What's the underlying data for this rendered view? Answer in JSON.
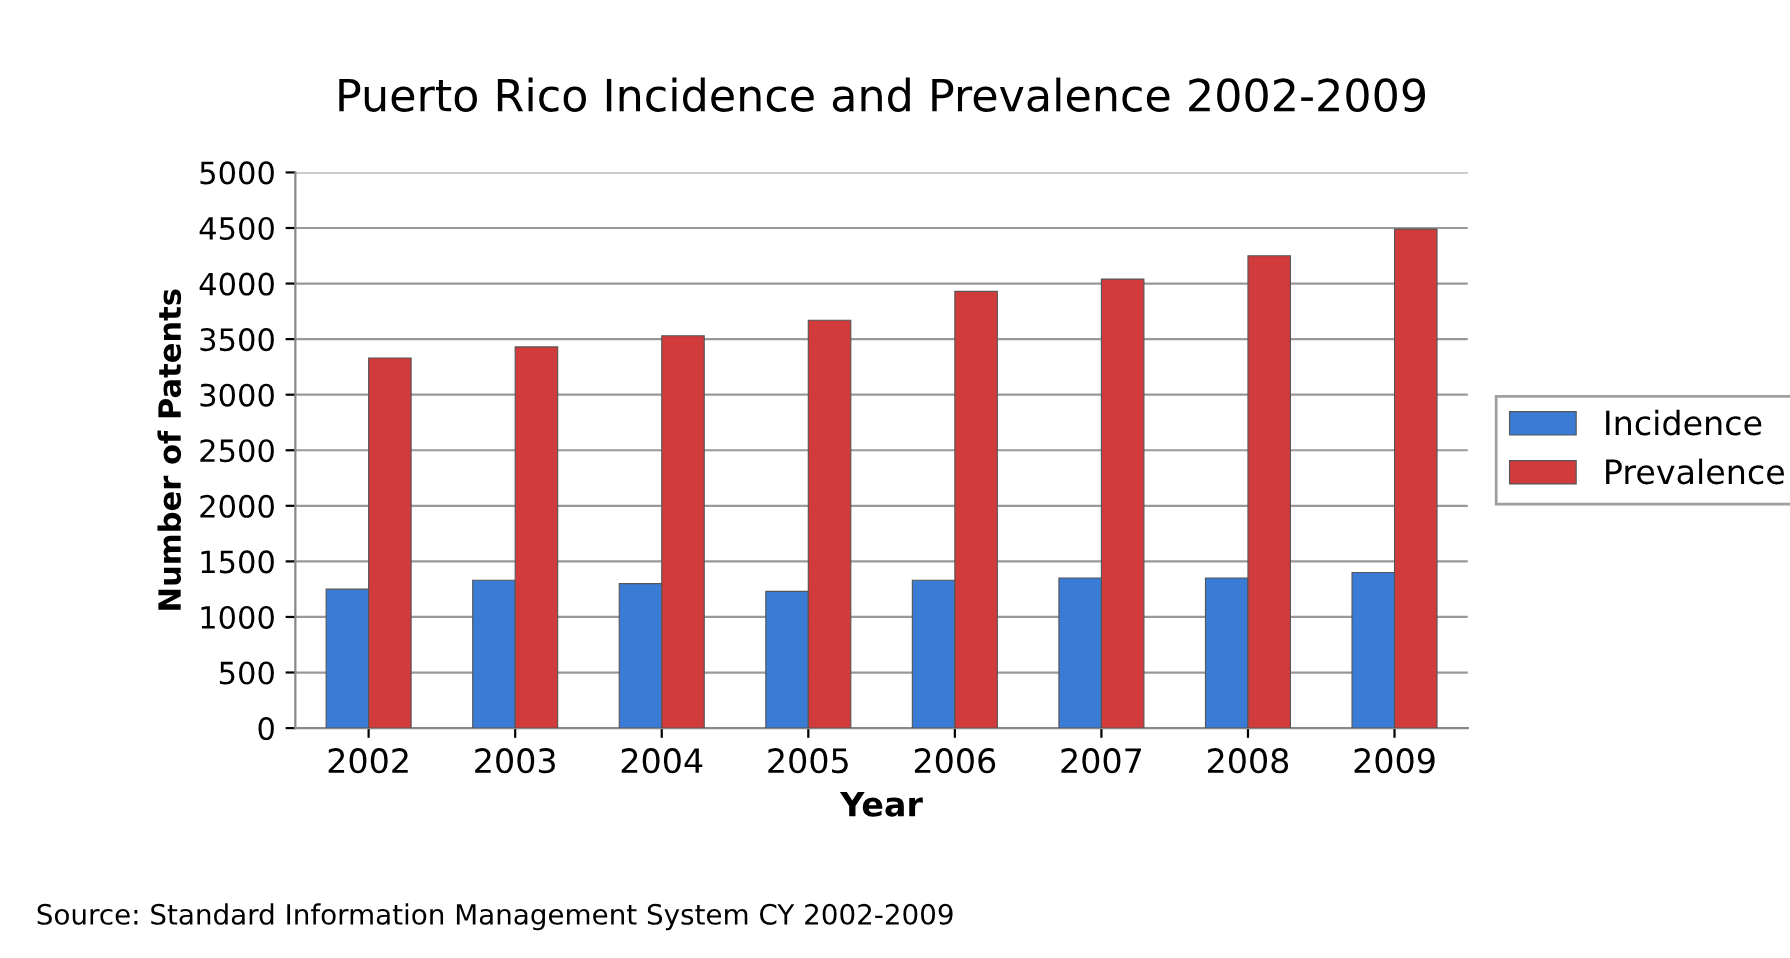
{
  "chart_data": {
    "type": "bar",
    "title": "Puerto Rico Incidence and Prevalence 2002-2009",
    "xlabel": "Year",
    "ylabel": "Number of Patents",
    "categories": [
      "2002",
      "2003",
      "2004",
      "2005",
      "2006",
      "2007",
      "2008",
      "2009"
    ],
    "series": [
      {
        "name": "Incidence",
        "color": "#3a7bd5",
        "values": [
          1250,
          1330,
          1300,
          1230,
          1330,
          1350,
          1350,
          1400
        ]
      },
      {
        "name": "Prevalence",
        "color": "#d23b3b",
        "values": [
          3330,
          3430,
          3530,
          3670,
          3930,
          4040,
          4250,
          4490
        ]
      }
    ],
    "ylim": [
      0,
      5000
    ],
    "yticks": [
      0,
      500,
      1000,
      1500,
      2000,
      2500,
      3000,
      3500,
      4000,
      4500,
      5000
    ],
    "grid": "y",
    "legend": "right",
    "annotations": [
      "Source: Standard Information Management System CY 2002-2009"
    ]
  }
}
